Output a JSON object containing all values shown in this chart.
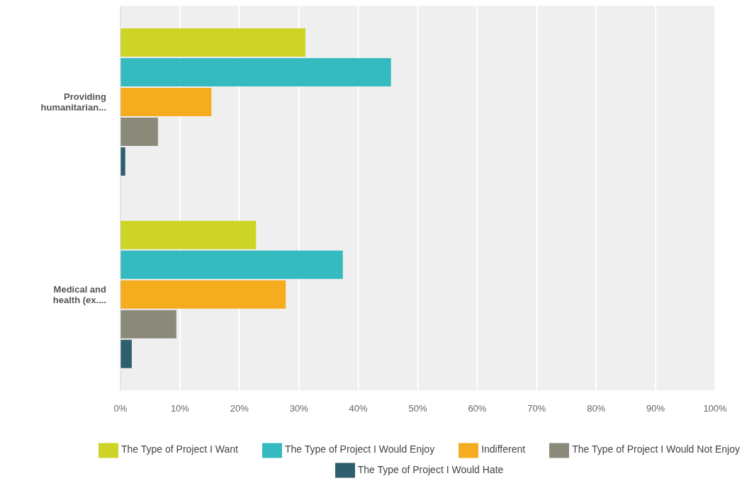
{
  "chart_data": {
    "type": "bar",
    "orientation": "horizontal",
    "categories": [
      "Providing humanitarian...",
      "Medical and health (ex...."
    ],
    "series": [
      {
        "name": "The Type of Project I Want",
        "color": "#cdd426",
        "values": [
          31.1,
          22.8
        ]
      },
      {
        "name": "The Type of Project I Would Enjoy",
        "color": "#35bbbf",
        "values": [
          45.5,
          37.4
        ]
      },
      {
        "name": "Indifferent",
        "color": "#f5ac1f",
        "values": [
          15.3,
          27.8
        ]
      },
      {
        "name": "The Type of Project I Would Not Enjoy",
        "color": "#8b8a7a",
        "values": [
          6.3,
          9.4
        ]
      },
      {
        "name": "The Type of Project I Would Hate",
        "color": "#2e5f6e",
        "values": [
          0.8,
          1.9
        ]
      }
    ],
    "xlim": [
      0,
      100
    ],
    "xticks": [
      {
        "value": 0,
        "label": "0%"
      },
      {
        "value": 10,
        "label": "10%"
      },
      {
        "value": 20,
        "label": "20%"
      },
      {
        "value": 30,
        "label": "30%"
      },
      {
        "value": 40,
        "label": "40%"
      },
      {
        "value": 50,
        "label": "50%"
      },
      {
        "value": 60,
        "label": "60%"
      },
      {
        "value": 70,
        "label": "70%"
      },
      {
        "value": 80,
        "label": "80%"
      },
      {
        "value": 90,
        "label": "90%"
      },
      {
        "value": 100,
        "label": "100%"
      }
    ],
    "grid": "x",
    "legend": "bottom"
  }
}
